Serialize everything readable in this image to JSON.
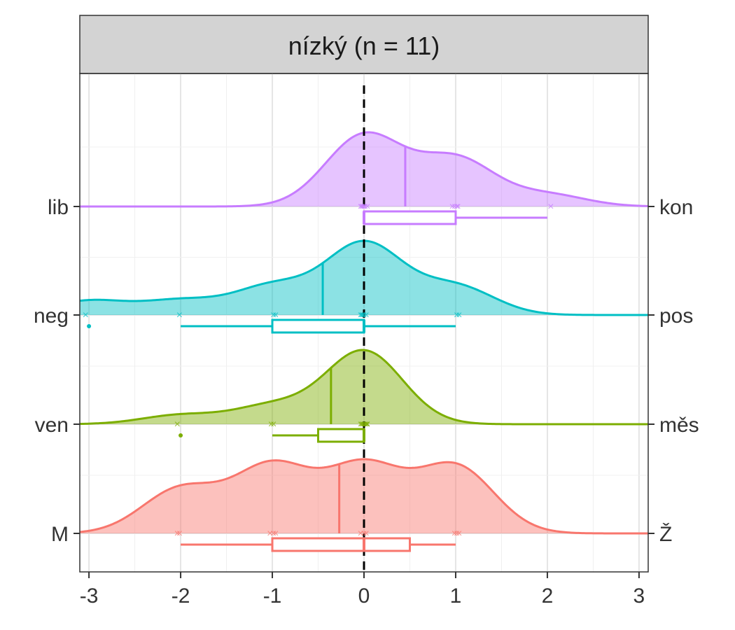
{
  "facet": {
    "title": "nízký (n = 11)"
  },
  "chart_data": {
    "type": "ridgeline",
    "xlim": [
      -3.1,
      3.1
    ],
    "x_ticks": [
      -3,
      -2,
      -1,
      0,
      1,
      2,
      3
    ],
    "x_tick_labels": [
      "-3",
      "-2",
      "-1",
      "0",
      "1",
      "2",
      "3"
    ],
    "reference_line_x": 0,
    "grid": true,
    "series": [
      {
        "left_label": "lib",
        "right_label": "kon",
        "color": "#C77CFF",
        "points": [
          0,
          0,
          0,
          0,
          0,
          0,
          1,
          1,
          1,
          1,
          2
        ],
        "mean": 0.45,
        "box": {
          "whisker_low": 0,
          "q1": 0,
          "median": 0,
          "q3": 1,
          "whisker_high": 2
        },
        "outliers": []
      },
      {
        "left_label": "neg",
        "right_label": "pos",
        "color": "#00BFC4",
        "points": [
          -3,
          -2,
          -1,
          -1,
          0,
          0,
          0,
          0,
          0,
          1,
          1
        ],
        "mean": -0.45,
        "box": {
          "whisker_low": -2,
          "q1": -1,
          "median": 0,
          "q3": 0,
          "whisker_high": 1
        },
        "outliers": [
          -3
        ]
      },
      {
        "left_label": "ven",
        "right_label": "měs",
        "color": "#7CAE00",
        "points": [
          -2,
          -1,
          -1,
          0,
          0,
          0,
          0,
          0,
          0,
          0,
          0
        ],
        "mean": -0.36,
        "box": {
          "whisker_low": -1,
          "q1": -0.5,
          "median": 0,
          "q3": 0,
          "whisker_high": 0
        },
        "outliers": [
          -2
        ]
      },
      {
        "left_label": "M",
        "right_label": "Ž",
        "color": "#F8766D",
        "points": [
          -2,
          -2,
          -1,
          -1,
          -1,
          0,
          0,
          0,
          1,
          1,
          1
        ],
        "mean": -0.27,
        "box": {
          "whisker_low": -2,
          "q1": -1,
          "median": 0,
          "q3": 0.5,
          "whisker_high": 1
        },
        "outliers": []
      }
    ]
  }
}
